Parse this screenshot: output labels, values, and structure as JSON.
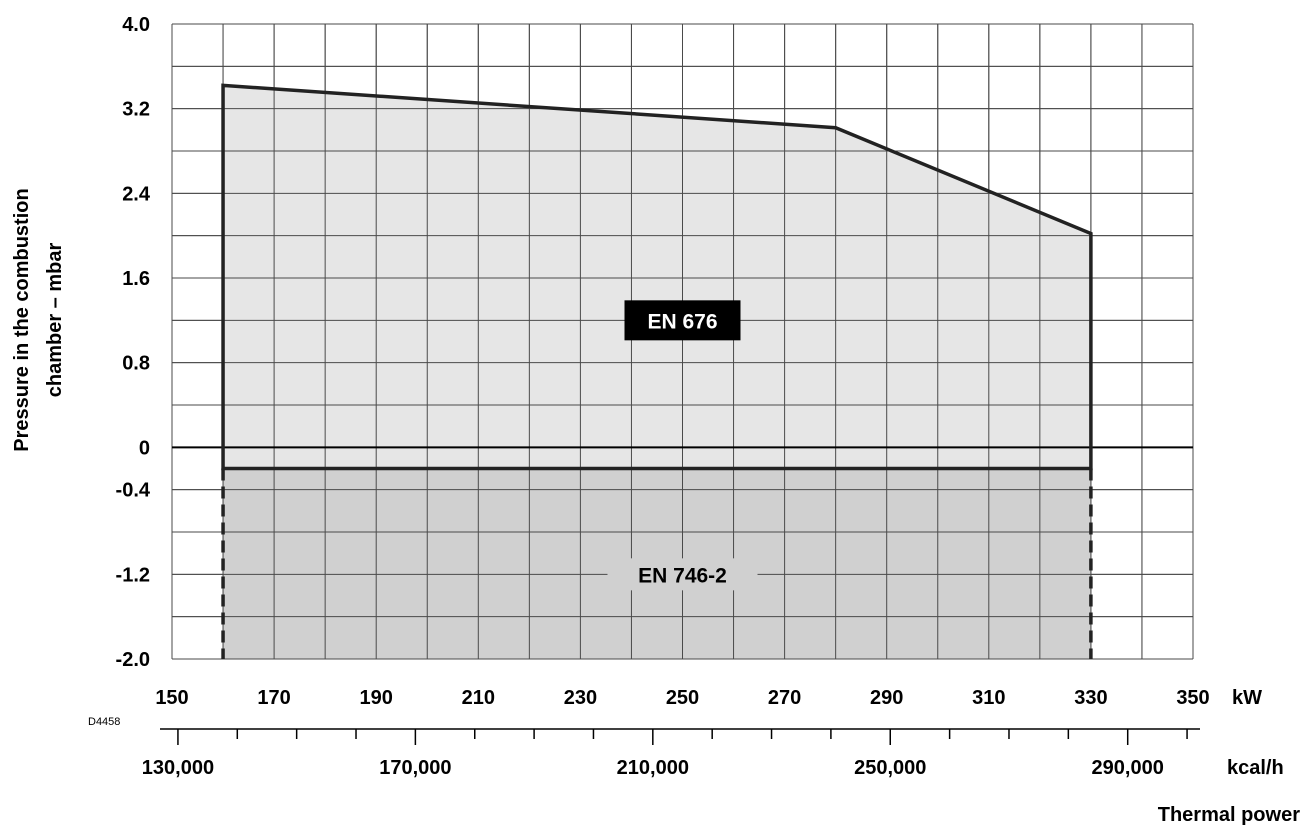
{
  "chart_data": {
    "type": "area",
    "drawing_code": "D4458",
    "xlabel": "Thermal power",
    "ylabel_lines": [
      "Pressure in the combustion",
      "chamber – mbar"
    ],
    "x_axis_primary": {
      "unit": "kW",
      "range": [
        150,
        350
      ],
      "ticks": [
        150,
        170,
        190,
        210,
        230,
        250,
        270,
        290,
        310,
        330,
        350
      ],
      "tick_labels": [
        "150",
        "170",
        "190",
        "210",
        "230",
        "250",
        "270",
        "290",
        "310",
        "330",
        "350"
      ]
    },
    "x_axis_secondary": {
      "unit": "kcal/h",
      "major_ticks": [
        130000,
        170000,
        210000,
        250000,
        290000
      ],
      "tick_labels": [
        "130,000",
        "170,000",
        "210,000",
        "250,000",
        "290,000"
      ],
      "minor_tick_step": 10000
    },
    "y_axis": {
      "range": [
        -2.0,
        4.0
      ],
      "ticks": [
        4.0,
        3.2,
        2.4,
        1.6,
        0.8,
        0,
        -0.4,
        -1.2,
        -2.0
      ],
      "tick_labels": [
        "4.0",
        "3.2",
        "2.4",
        "1.6",
        "0.8",
        "0",
        "-0.4",
        "-1.2",
        "-2.0"
      ],
      "gridline_step": 0.4
    },
    "grid": true,
    "series": [
      {
        "name": "EN 676",
        "label_position": [
          250,
          1.2
        ],
        "x": [
          160,
          160,
          280,
          330,
          330
        ],
        "y": [
          -0.2,
          3.42,
          3.02,
          2.02,
          -0.2
        ],
        "fill": "#e6e6e6"
      },
      {
        "name": "EN 746-2",
        "label_position": [
          250,
          -1.2
        ],
        "x": [
          160,
          330,
          330,
          160
        ],
        "y": [
          -0.2,
          -0.2,
          -2.0,
          -2.0
        ],
        "fill": "#d0d0d0",
        "side_edges": "dashed"
      }
    ]
  }
}
